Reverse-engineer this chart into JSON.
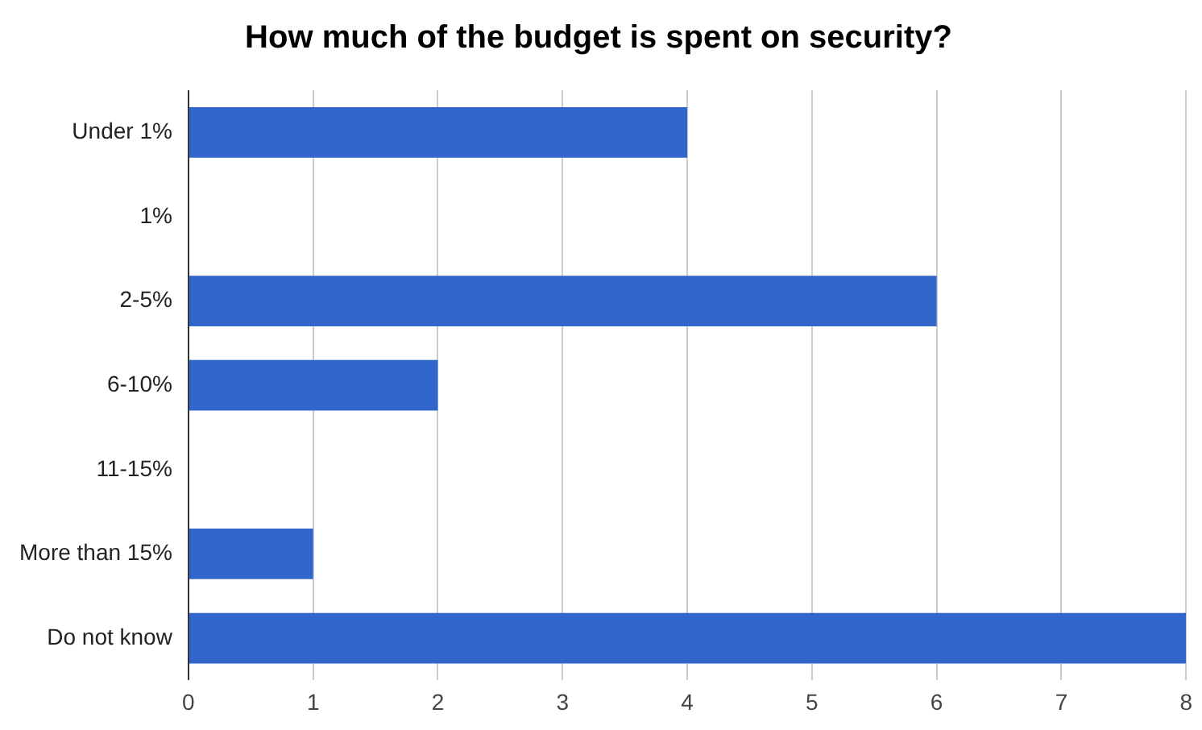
{
  "chart_data": {
    "type": "bar",
    "orientation": "horizontal",
    "title": "How much of the budget is spent on security?",
    "categories": [
      "Under 1%",
      "1%",
      "2-5%",
      "6-10%",
      "11-15%",
      "More than 15%",
      "Do not know"
    ],
    "values": [
      4,
      0,
      6,
      2,
      0,
      1,
      8
    ],
    "color": "#3366cc",
    "xlim": [
      0,
      8
    ],
    "xticks": [
      0,
      1,
      2,
      3,
      4,
      5,
      6,
      7,
      8
    ],
    "grid": "x",
    "legend": false
  }
}
